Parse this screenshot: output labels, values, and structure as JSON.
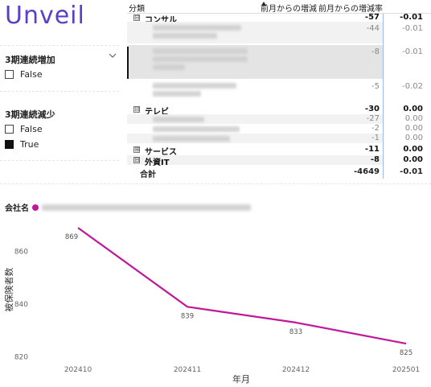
{
  "app": {
    "logo_text": "Unveil"
  },
  "slicers": [
    {
      "title": "3期連続増加",
      "options": [
        {
          "label": "False",
          "checked": false
        }
      ]
    },
    {
      "title": "3期連続減少",
      "options": [
        {
          "label": "False",
          "checked": false
        },
        {
          "label": "True",
          "checked": true
        }
      ]
    }
  ],
  "matrix": {
    "columns": {
      "category": "分類",
      "change": "前月からの増減",
      "change_rate": "前月からの増減率"
    },
    "rows": [
      {
        "kind": "group",
        "expander": "⊟",
        "label": "コンサル",
        "change": "-57",
        "rate": "-0.01"
      },
      {
        "kind": "child",
        "change": "-44",
        "rate": "-0.01"
      },
      {
        "kind": "child",
        "change": "-8",
        "rate": "-0.01",
        "selected": true
      },
      {
        "kind": "child",
        "change": "-5",
        "rate": "-0.02"
      },
      {
        "kind": "group",
        "expander": "⊟",
        "label": "テレビ",
        "change": "-30",
        "rate": "0.00"
      },
      {
        "kind": "child",
        "change": "-27",
        "rate": "0.00"
      },
      {
        "kind": "child",
        "change": "-2",
        "rate": "0.00"
      },
      {
        "kind": "child",
        "change": "-1",
        "rate": "0.00"
      },
      {
        "kind": "group",
        "expander": "⊞",
        "label": "サービス",
        "change": "-11",
        "rate": "0.00"
      },
      {
        "kind": "group",
        "expander": "⊟",
        "label": "外資IT",
        "change": "-8",
        "rate": "0.00"
      }
    ],
    "total": {
      "label": "合計",
      "change": "-4649",
      "rate": "-0.01"
    }
  },
  "legend": {
    "title": "会社名"
  },
  "colors": {
    "series": "#c0189a",
    "logo": "#5a3fc7",
    "column_line": "#9db9e8"
  },
  "chart_data": {
    "type": "line",
    "categories": [
      "202410",
      "202411",
      "202412",
      "202501"
    ],
    "series": [
      {
        "values": [
          869,
          839,
          833,
          825
        ]
      }
    ],
    "data_labels": [
      "869",
      "839",
      "833",
      "825"
    ],
    "xlabel": "年月",
    "ylabel": "被保険者数",
    "yticks": [
      820,
      840,
      860
    ],
    "ylim": [
      818,
      873
    ],
    "grid": false,
    "legend_position": "top-left"
  }
}
